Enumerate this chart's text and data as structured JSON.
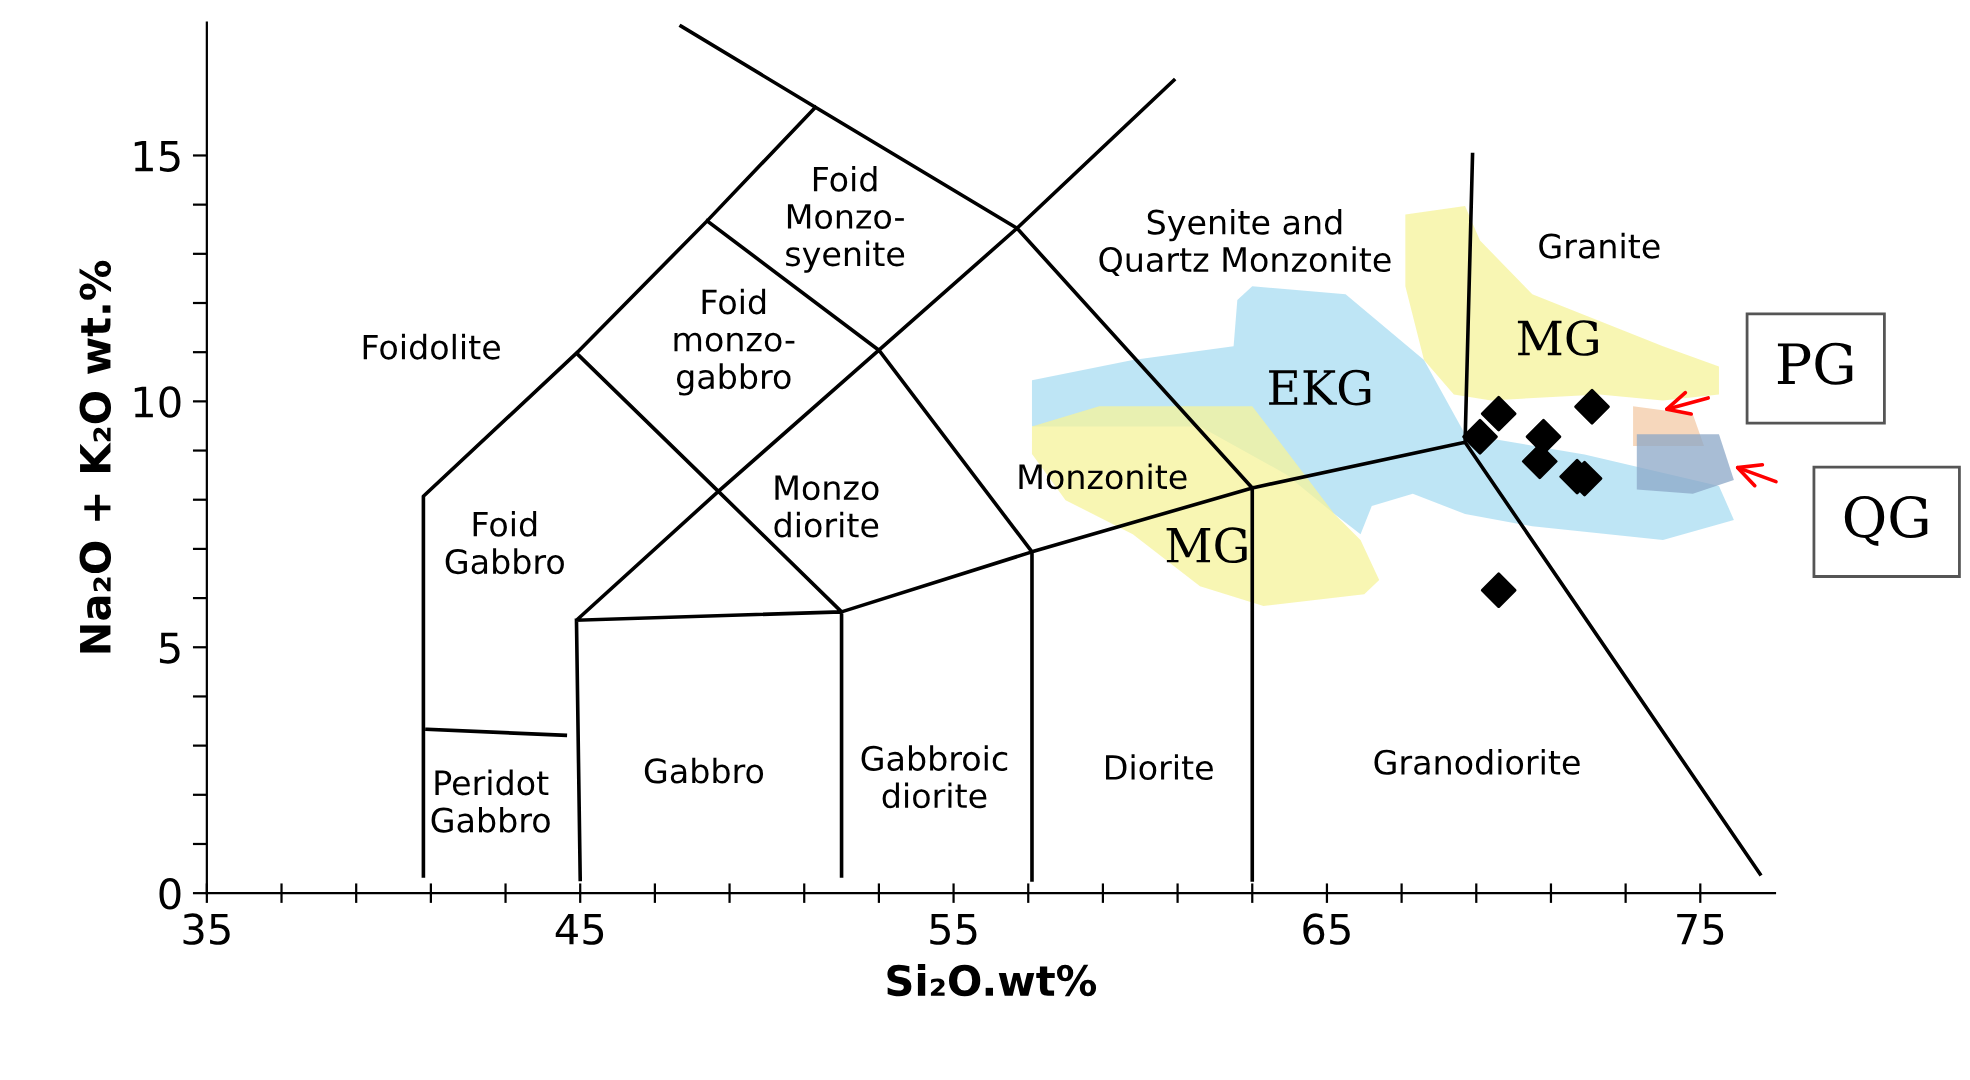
{
  "chart_data": {
    "type": "scatter",
    "xlabel": "Si₂O.wt%",
    "ylabel": "Na₂O + K₂O wt.%",
    "xlim": [
      35,
      77
    ],
    "ylim": [
      0,
      17.7
    ],
    "xticks": [
      35,
      {
        "value": 37,
        "label": null
      },
      {
        "value": 39,
        "label": null
      },
      {
        "value": 41,
        "label": null
      },
      {
        "value": 43,
        "label": null
      },
      45,
      {
        "value": 47,
        "label": null
      },
      {
        "value": 49,
        "label": null
      },
      {
        "value": 51,
        "label": null
      },
      {
        "value": 53,
        "label": null
      },
      55,
      {
        "value": 57,
        "label": null
      },
      {
        "value": 59,
        "label": null
      },
      {
        "value": 61,
        "label": null
      },
      {
        "value": 63,
        "label": null
      },
      65,
      {
        "value": 67,
        "label": null
      },
      {
        "value": 69,
        "label": null
      },
      {
        "value": 71,
        "label": null
      },
      {
        "value": 73,
        "label": null
      },
      75
    ],
    "yticks": [
      0,
      {
        "value": 1,
        "label": null
      },
      {
        "value": 2,
        "label": null
      },
      {
        "value": 3,
        "label": null
      },
      {
        "value": 4,
        "label": null
      },
      5,
      {
        "value": 6,
        "label": null
      },
      {
        "value": 7,
        "label": null
      },
      {
        "value": 8,
        "label": null
      },
      {
        "value": 9,
        "label": null
      },
      10,
      {
        "value": 11,
        "label": null
      },
      {
        "value": 12,
        "label": null
      },
      {
        "value": 13,
        "label": null
      },
      {
        "value": 14,
        "label": null
      },
      15
    ],
    "grid": false,
    "legend": false,
    "series": [
      {
        "type": "area",
        "color": "#a8dcf2",
        "x": [
          57.1,
          59.8,
          62.5,
          62.6,
          63.0,
          65.5,
          67.6,
          68.7,
          71.9,
          75.5,
          75.9,
          74.0,
          70.5,
          68.7,
          67.3,
          66.2,
          65.9,
          65.2,
          63.9,
          61.6,
          58.4,
          57.1
        ],
        "values": [
          10.43,
          10.84,
          11.12,
          12.06,
          12.34,
          12.18,
          10.84,
          9.33,
          8.92,
          8.28,
          7.59,
          7.18,
          7.46,
          7.71,
          8.12,
          7.87,
          7.3,
          7.71,
          8.52,
          9.49,
          9.49,
          9.49
        ]
      },
      {
        "type": "area",
        "color": "#f6f39a",
        "x": [
          67.1,
          68.7,
          69.1,
          70.5,
          74.0,
          75.5,
          75.5,
          74.0,
          72.3,
          69.4,
          68.4,
          67.6,
          67.1
        ],
        "values": [
          13.8,
          13.97,
          13.27,
          12.18,
          11.12,
          10.71,
          10.14,
          10.02,
          10.14,
          10.02,
          10.14,
          10.84,
          12.34
        ]
      },
      {
        "type": "area",
        "color": "#f6f39a",
        "x": [
          57.1,
          58.9,
          63.0,
          63.7,
          65.2,
          65.9,
          66.4,
          66.0,
          63.3,
          61.6,
          59.8,
          58.0,
          57.1
        ],
        "values": [
          9.49,
          9.9,
          9.9,
          9.21,
          7.71,
          7.18,
          6.37,
          6.08,
          5.84,
          6.24,
          7.3,
          7.99,
          8.93
        ]
      },
      {
        "type": "area",
        "color": "#f3c9a6",
        "x": [
          73.2,
          74.8,
          75.1,
          73.2
        ],
        "values": [
          9.9,
          9.74,
          9.09,
          9.09
        ]
      },
      {
        "type": "area",
        "color": "#8ba7c7",
        "x": [
          73.3,
          75.5,
          75.9,
          74.8,
          73.3
        ],
        "values": [
          9.33,
          9.33,
          8.4,
          8.12,
          8.21
        ]
      },
      {
        "type": "line",
        "color": "#000000",
        "x": [
          47.7,
          51.3,
          56.7,
          63.0,
          68.7,
          76.6,
          null,
          60.9,
          56.7,
          null,
          51.3,
          48.4,
          44.9,
          40.8,
          40.8,
          null,
          48.4,
          53.0,
          null,
          56.7,
          53.0,
          48.7,
          44.9,
          45.0,
          null,
          44.9,
          48.7,
          52.0,
          52.0,
          null,
          44.9,
          52.0,
          null,
          52.0,
          57.1,
          63.0,
          null,
          53.0,
          57.1,
          57.1,
          null,
          63.0,
          63.0,
          null,
          68.7,
          68.9,
          null,
          40.9,
          44.6
        ],
        "values": [
          17.63,
          15.98,
          13.52,
          8.24,
          9.17,
          0.39,
          null,
          16.53,
          13.52,
          null,
          15.98,
          13.67,
          10.98,
          8.07,
          0.35,
          null,
          13.67,
          11.04,
          null,
          13.52,
          11.04,
          8.17,
          5.55,
          0.28,
          null,
          10.98,
          8.17,
          5.72,
          0.35,
          null,
          5.55,
          5.72,
          null,
          5.72,
          6.94,
          8.24,
          null,
          11.04,
          6.94,
          0.27,
          null,
          8.24,
          0.27,
          null,
          9.17,
          15.02,
          null,
          3.33,
          3.21
        ]
      },
      {
        "color": "#000000",
        "marker": "diamond",
        "x": [
          69.6,
          69.1,
          70.8,
          70.7,
          72.1,
          71.7,
          71.9,
          69.6
        ],
        "values": [
          9.75,
          9.28,
          9.28,
          8.78,
          9.89,
          8.47,
          8.43,
          6.16
        ]
      }
    ],
    "annotations": [
      "Foidolite",
      "Foid\nGabbro",
      "Peridot\nGabbro",
      "Gabbro",
      "Gabbroic\ndiorite",
      "Diorite",
      "Granodiorite",
      "Monzo\ndiorite",
      "Foid\nmonzo-\ngabbro",
      "Foid\nMonzo-\nsyenite",
      "Syenite and\nQuartz Monzonite",
      "Granite",
      "MG",
      "EKG",
      "Monzonite",
      "MG",
      {
        "text": "PG",
        "x": 74.0,
        "y": 9.82
      },
      {
        "text": "QG",
        "x": 75.9,
        "y": 8.68
      }
    ]
  }
}
